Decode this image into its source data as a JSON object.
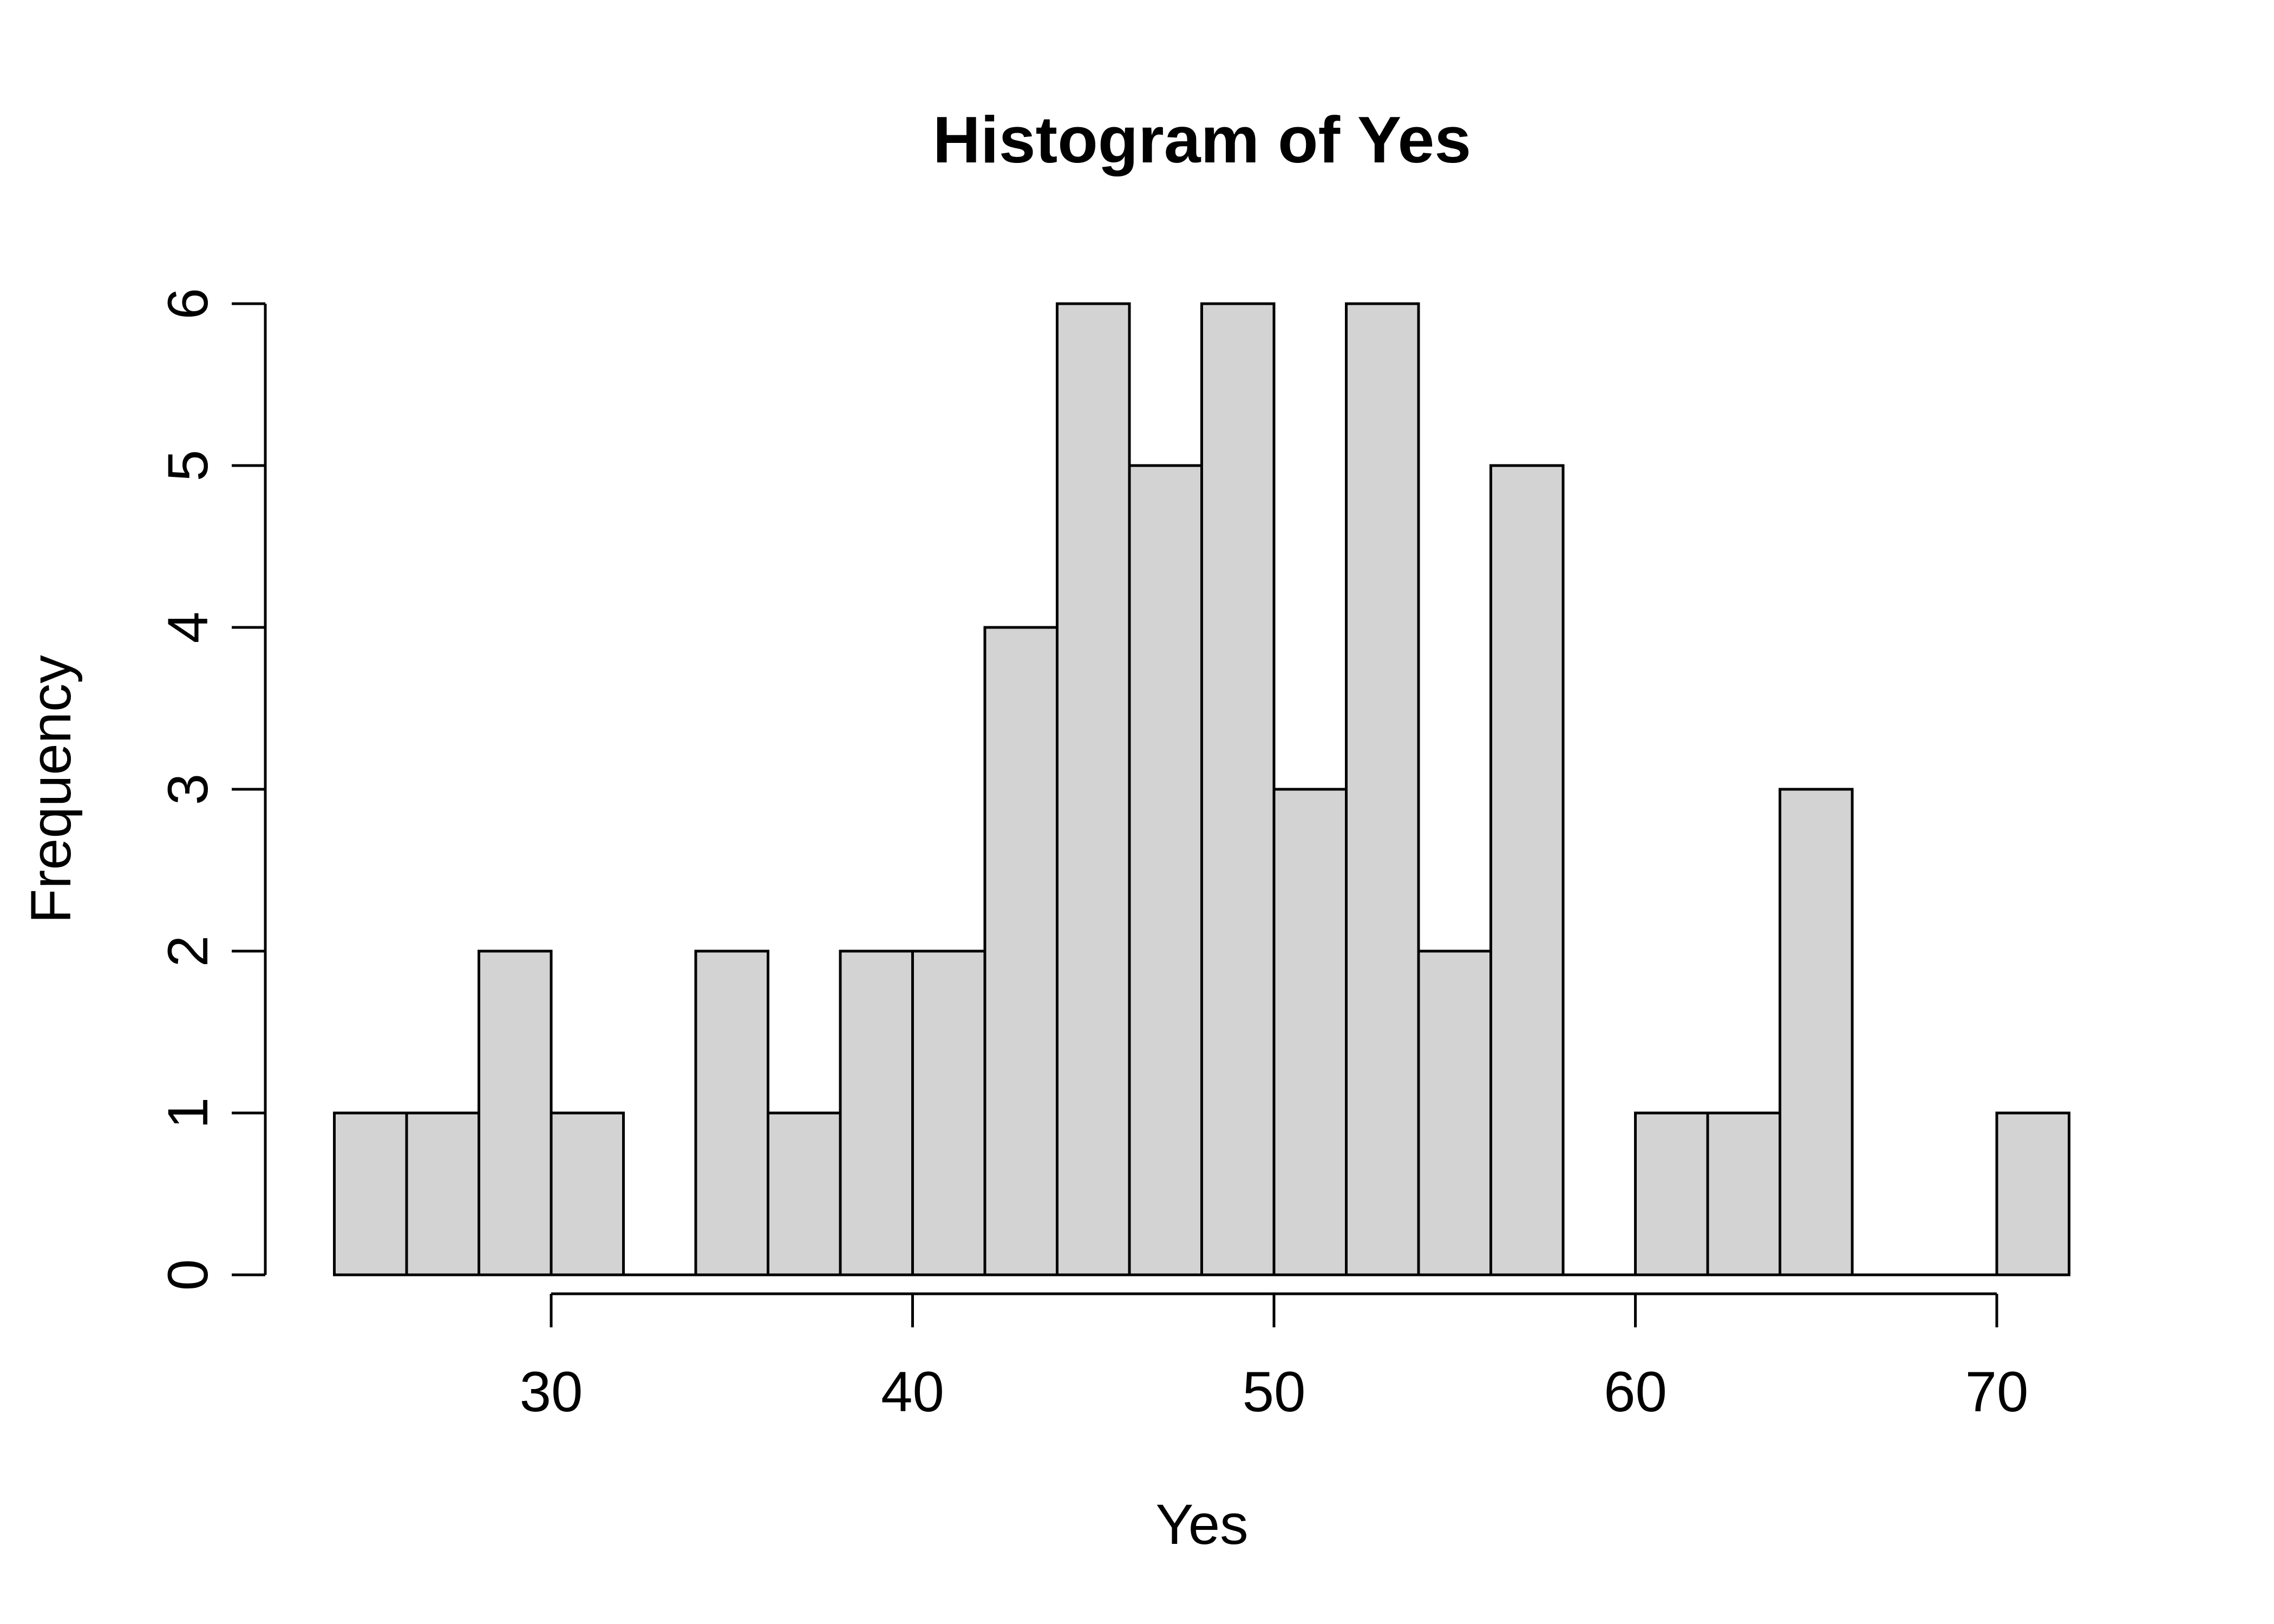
{
  "chart_data": {
    "type": "bar",
    "subtype": "histogram",
    "title": "Histogram of Yes",
    "xlabel": "Yes",
    "ylabel": "Frequency",
    "bin_width": 2,
    "bin_edges": [
      24,
      26,
      28,
      30,
      32,
      34,
      36,
      38,
      40,
      42,
      44,
      46,
      48,
      50,
      52,
      54,
      56,
      58,
      60,
      62,
      64,
      66,
      68,
      70,
      72
    ],
    "counts": [
      1,
      1,
      2,
      1,
      0,
      2,
      1,
      2,
      2,
      4,
      6,
      5,
      6,
      3,
      6,
      2,
      5,
      0,
      1,
      1,
      3,
      0,
      0,
      1
    ],
    "x_ticks": [
      30,
      40,
      50,
      60,
      70
    ],
    "y_ticks": [
      0,
      1,
      2,
      3,
      4,
      5,
      6
    ],
    "xlim": [
      24,
      72
    ],
    "ylim": [
      0,
      6
    ],
    "grid": false,
    "legend": null,
    "colors": {
      "bar_fill": "#d3d3d3",
      "bar_stroke": "#000000",
      "axis": "#000000",
      "text": "#000000",
      "background": "#ffffff"
    }
  }
}
